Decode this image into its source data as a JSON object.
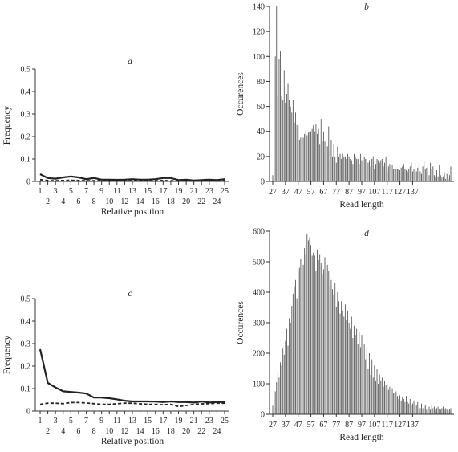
{
  "chart_data": [
    {
      "panel": "a",
      "type": "line",
      "xlabel": "Relative position",
      "ylabel": "Frequency",
      "ylim": [
        0,
        0.5
      ],
      "yticks": [
        "0",
        "0.1",
        "0.2",
        "0.3",
        "0.4",
        "0.5"
      ],
      "x": [
        1,
        2,
        3,
        4,
        5,
        6,
        7,
        8,
        9,
        10,
        11,
        12,
        13,
        14,
        15,
        16,
        17,
        18,
        19,
        20,
        21,
        22,
        23,
        24,
        25
      ],
      "xticks_odd": [
        "1",
        "3",
        "5",
        "7",
        "9",
        "11",
        "13",
        "15",
        "17",
        "19",
        "21",
        "23",
        "25"
      ],
      "xticks_even": [
        "2",
        "4",
        "6",
        "8",
        "10",
        "12",
        "14",
        "16",
        "18",
        "20",
        "22",
        "24"
      ],
      "series": [
        {
          "style": "solid",
          "color": "#222222",
          "values": [
            0.032,
            0.015,
            0.012,
            0.018,
            0.022,
            0.018,
            0.01,
            0.015,
            0.008,
            0.008,
            0.007,
            0.008,
            0.01,
            0.008,
            0.008,
            0.01,
            0.015,
            0.015,
            0.006,
            0.008,
            0.004,
            0.006,
            0.008,
            0.006,
            0.01
          ]
        },
        {
          "style": "dashed",
          "color": "#222222",
          "values": [
            0.008,
            0.004,
            0.003,
            0.004,
            0.005,
            0.004,
            0.003,
            0.003,
            0.004,
            0.003,
            0.004,
            0.003,
            0.003,
            0.004,
            0.003,
            0.003,
            0.004,
            0.003,
            0.003,
            0.003,
            0.003,
            0.003,
            0.004,
            0.004,
            0.004
          ]
        }
      ]
    },
    {
      "panel": "b",
      "type": "bar",
      "xlabel": "Read length",
      "ylabel": "Occurences",
      "ylim": [
        0,
        140
      ],
      "yticks": [
        "0",
        "20",
        "40",
        "60",
        "80",
        "100",
        "120",
        "140"
      ],
      "x_start": 27,
      "xticks": [
        "27",
        "37",
        "47",
        "57",
        "67",
        "77",
        "87",
        "97",
        "107",
        "117",
        "127",
        "137"
      ],
      "values": [
        5,
        92,
        100,
        140,
        68,
        98,
        104,
        68,
        65,
        89,
        63,
        70,
        78,
        65,
        60,
        55,
        65,
        47,
        55,
        45,
        45,
        33,
        35,
        38,
        35,
        38,
        40,
        37,
        39,
        40,
        40,
        42,
        45,
        40,
        46,
        38,
        42,
        30,
        50,
        32,
        40,
        32,
        30,
        28,
        44,
        25,
        33,
        20,
        30,
        20,
        15,
        28,
        20,
        22,
        18,
        22,
        20,
        20,
        18,
        22,
        20,
        18,
        17,
        14,
        22,
        20,
        18,
        18,
        14,
        22,
        17,
        15,
        20,
        18,
        18,
        15,
        17,
        12,
        18,
        20,
        10,
        14,
        18,
        17,
        15,
        17,
        18,
        12,
        15,
        20,
        8,
        12,
        14,
        10,
        13,
        10,
        10,
        10,
        10,
        10,
        9,
        11,
        12,
        14,
        10,
        9,
        8,
        10,
        12,
        15,
        8,
        10,
        15,
        8,
        11,
        15,
        8,
        6,
        12,
        16,
        10,
        11,
        8,
        5,
        15,
        10,
        12,
        5,
        4,
        9,
        4,
        13,
        5,
        3,
        4,
        7,
        2,
        6,
        2,
        5,
        12
      ]
    },
    {
      "panel": "c",
      "type": "line",
      "xlabel": "Relative position",
      "ylabel": "Frequency",
      "ylim": [
        0,
        0.5
      ],
      "yticks": [
        "0",
        "0.1",
        "0.2",
        "0.3",
        "0.4",
        "0.5"
      ],
      "x": [
        1,
        2,
        3,
        4,
        5,
        6,
        7,
        8,
        9,
        10,
        11,
        12,
        13,
        14,
        15,
        16,
        17,
        18,
        19,
        20,
        21,
        22,
        23,
        24,
        25
      ],
      "xticks_odd": [
        "1",
        "3",
        "5",
        "7",
        "9",
        "11",
        "13",
        "15",
        "17",
        "19",
        "21",
        "23",
        "25"
      ],
      "xticks_even": [
        "2",
        "4",
        "6",
        "8",
        "10",
        "12",
        "14",
        "16",
        "18",
        "20",
        "22",
        "24"
      ],
      "series": [
        {
          "style": "solid",
          "color": "#222222",
          "values": [
            0.275,
            0.125,
            0.105,
            0.088,
            0.085,
            0.082,
            0.078,
            0.06,
            0.06,
            0.057,
            0.052,
            0.046,
            0.043,
            0.043,
            0.043,
            0.042,
            0.04,
            0.043,
            0.04,
            0.04,
            0.038,
            0.043,
            0.038,
            0.04,
            0.04
          ]
        },
        {
          "style": "dashed",
          "color": "#222222",
          "values": [
            0.03,
            0.035,
            0.035,
            0.033,
            0.038,
            0.038,
            0.036,
            0.033,
            0.03,
            0.03,
            0.033,
            0.035,
            0.035,
            0.032,
            0.03,
            0.03,
            0.028,
            0.03,
            0.02,
            0.025,
            0.03,
            0.032,
            0.033,
            0.035,
            0.035
          ]
        }
      ]
    },
    {
      "panel": "d",
      "type": "bar",
      "xlabel": "Read length",
      "ylabel": "Occurences",
      "ylim": [
        0,
        600
      ],
      "yticks": [
        "0",
        "100",
        "200",
        "300",
        "400",
        "500",
        "600"
      ],
      "x_start": 27,
      "xticks": [
        "27",
        "37",
        "47",
        "57",
        "67",
        "77",
        "87",
        "97",
        "107",
        "117",
        "127",
        "137"
      ],
      "values": [
        28,
        60,
        75,
        105,
        138,
        120,
        170,
        160,
        215,
        195,
        240,
        280,
        225,
        315,
        300,
        355,
        395,
        420,
        440,
        380,
        468,
        480,
        510,
        532,
        490,
        545,
        525,
        590,
        570,
        580,
        555,
        520,
        530,
        520,
        470,
        540,
        505,
        525,
        495,
        460,
        475,
        515,
        440,
        490,
        470,
        420,
        440,
        410,
        390,
        430,
        350,
        400,
        370,
        330,
        370,
        340,
        320,
        360,
        310,
        340,
        300,
        280,
        320,
        250,
        290,
        260,
        280,
        230,
        270,
        220,
        260,
        210,
        230,
        180,
        220,
        150,
        200,
        130,
        180,
        120,
        160,
        110,
        150,
        100,
        130,
        110,
        120,
        90,
        110,
        95,
        100,
        80,
        90,
        75,
        85,
        70,
        70,
        75,
        60,
        50,
        62,
        45,
        55,
        50,
        40,
        60,
        40,
        35,
        50,
        30,
        35,
        45,
        25,
        30,
        40,
        25,
        20,
        35,
        20,
        25,
        30,
        15,
        20,
        25,
        15,
        30,
        20,
        25,
        15,
        20,
        25,
        18,
        15,
        20,
        25,
        15,
        20,
        15,
        12,
        18,
        20
      ]
    }
  ]
}
